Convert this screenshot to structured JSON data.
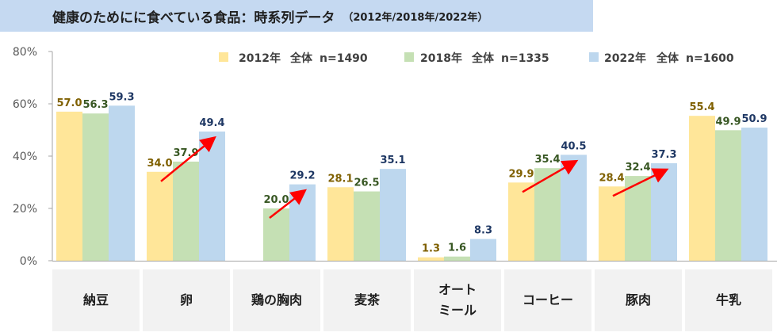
{
  "title": {
    "main": "健康のためにに食べている食品：時系列データ",
    "sub": "（2012年/2018年/2022年）"
  },
  "chart_data": {
    "type": "bar",
    "title": "健康のためにに食べている食品：時系列データ（2012年/2018年/2022年）",
    "categories": [
      "納豆",
      "卵",
      "鶏の胸肉",
      "麦茶",
      "オート ミール",
      "コーヒー",
      "豚肉",
      "牛乳"
    ],
    "series": [
      {
        "name": "2012年 全体 n=1490",
        "color": "#ffe699",
        "labelColor": "#7f6000",
        "values": [
          57.0,
          34.0,
          null,
          28.1,
          1.3,
          29.9,
          28.4,
          55.4
        ]
      },
      {
        "name": "2018年 全体 n=1335",
        "color": "#c5e0b4",
        "labelColor": "#385723",
        "values": [
          56.3,
          37.9,
          20.0,
          26.5,
          1.6,
          35.4,
          32.4,
          49.9
        ]
      },
      {
        "name": "2022年 全体 n=1600",
        "color": "#bdd7ee",
        "labelColor": "#1f3864",
        "values": [
          59.3,
          49.4,
          29.2,
          35.1,
          8.3,
          40.5,
          37.3,
          50.9
        ]
      }
    ],
    "legend": {
      "labels": [
        "2012年",
        "全体",
        "n=1490",
        "2018年",
        "全体",
        "n=1335",
        "2022年",
        "全体",
        "n=1600"
      ]
    },
    "ylim": [
      0,
      80
    ],
    "yticks": [
      0,
      20,
      40,
      60,
      80
    ],
    "ytick_labels": [
      "0%",
      "20%",
      "40%",
      "60%",
      "80%"
    ],
    "trend_arrows": [
      {
        "category": "卵",
        "from_series": 0,
        "to_series": 2
      },
      {
        "category": "鶏の胸肉",
        "from_series": 1,
        "to_series": 2
      },
      {
        "category": "コーヒー",
        "from_series": 0,
        "to_series": 2
      },
      {
        "category": "豚肉",
        "from_series": 0,
        "to_series": 2
      }
    ],
    "arrow_color": "#ff0000",
    "legend_position": "top"
  }
}
